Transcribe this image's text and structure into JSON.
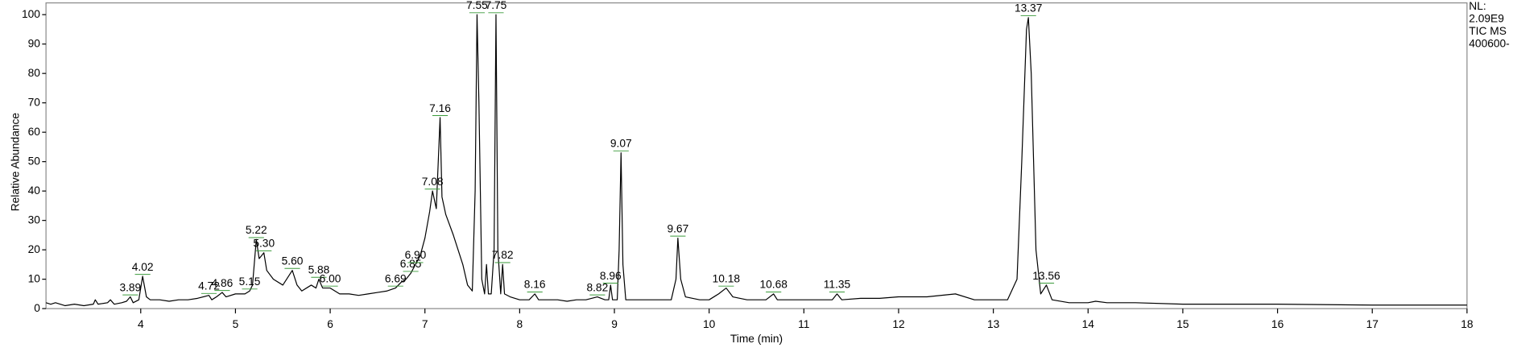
{
  "chart_data": {
    "type": "line",
    "x_label": "Time (min)",
    "y_label": "Relative Abundance",
    "annotations": [
      "NL:",
      "2.09E9",
      "TIC  MS",
      "400600-"
    ],
    "xlim": [
      3,
      18
    ],
    "xticks": [
      4,
      5,
      6,
      7,
      8,
      9,
      10,
      11,
      12,
      13,
      14,
      15,
      16,
      17,
      18
    ],
    "ylim": [
      0,
      104
    ],
    "yticks": [
      0,
      10,
      20,
      30,
      40,
      50,
      60,
      70,
      80,
      90,
      100
    ],
    "x": [
      3.0,
      3.05,
      3.1,
      3.2,
      3.3,
      3.4,
      3.5,
      3.52,
      3.55,
      3.65,
      3.68,
      3.72,
      3.8,
      3.85,
      3.89,
      3.92,
      3.98,
      4.02,
      4.06,
      4.1,
      4.2,
      4.3,
      4.4,
      4.5,
      4.6,
      4.72,
      4.75,
      4.8,
      4.86,
      4.9,
      5.0,
      5.1,
      5.15,
      5.18,
      5.22,
      5.25,
      5.3,
      5.33,
      5.4,
      5.5,
      5.6,
      5.65,
      5.7,
      5.8,
      5.85,
      5.88,
      5.92,
      6.0,
      6.1,
      6.2,
      6.3,
      6.4,
      6.5,
      6.6,
      6.69,
      6.75,
      6.8,
      6.85,
      6.9,
      6.95,
      7.0,
      7.05,
      7.08,
      7.12,
      7.16,
      7.18,
      7.22,
      7.3,
      7.4,
      7.45,
      7.5,
      7.53,
      7.55,
      7.57,
      7.6,
      7.63,
      7.65,
      7.67,
      7.7,
      7.73,
      7.75,
      7.77,
      7.8,
      7.82,
      7.84,
      7.9,
      8.0,
      8.1,
      8.16,
      8.2,
      8.3,
      8.4,
      8.5,
      8.6,
      8.7,
      8.82,
      8.9,
      8.94,
      8.96,
      8.98,
      9.03,
      9.05,
      9.07,
      9.09,
      9.12,
      9.2,
      9.3,
      9.4,
      9.5,
      9.6,
      9.65,
      9.67,
      9.7,
      9.75,
      9.9,
      10.0,
      10.1,
      10.18,
      10.25,
      10.4,
      10.6,
      10.68,
      10.72,
      10.9,
      11.1,
      11.3,
      11.35,
      11.4,
      11.6,
      11.8,
      12.0,
      12.3,
      12.6,
      12.8,
      13.0,
      13.15,
      13.25,
      13.3,
      13.35,
      13.37,
      13.4,
      13.45,
      13.5,
      13.56,
      13.62,
      13.8,
      14.0,
      14.08,
      14.2,
      14.3,
      14.5,
      15.0,
      16.0,
      17.0,
      18.0
    ],
    "series": [
      {
        "name": "TIC",
        "color": "#000000",
        "values": [
          2,
          1.5,
          2,
          1,
          1.5,
          1,
          1.5,
          3,
          1.5,
          2,
          3,
          1.5,
          2,
          2.5,
          4,
          2,
          3,
          11,
          4,
          3,
          3,
          2.5,
          3,
          3,
          3.5,
          4.5,
          3,
          4,
          5.5,
          4,
          5,
          5,
          6,
          8,
          23.5,
          17,
          19,
          13,
          10,
          8,
          13,
          8,
          6,
          8,
          7,
          10,
          7,
          7,
          5,
          5,
          4.5,
          5,
          5.5,
          6,
          7,
          9,
          10,
          12,
          15,
          18,
          24,
          33,
          40,
          34,
          65,
          38,
          32,
          25,
          15,
          8,
          6,
          40,
          100,
          70,
          10,
          5,
          15,
          5,
          5,
          20,
          100,
          20,
          5,
          15,
          5,
          4,
          3,
          3,
          5,
          3,
          3,
          3,
          2.5,
          3,
          3,
          4,
          3,
          3,
          8,
          3,
          3,
          20,
          53,
          15,
          3,
          3,
          3,
          3,
          3,
          3,
          10,
          24,
          10,
          4,
          3,
          3,
          5,
          7,
          4,
          3,
          3,
          5,
          3,
          3,
          3,
          3,
          5,
          3,
          3.5,
          3.5,
          4,
          4,
          5,
          3,
          3,
          3,
          10,
          50,
          95,
          99,
          80,
          20,
          5,
          8,
          3,
          2,
          2,
          2.5,
          2,
          2,
          2,
          1.5,
          1.5,
          1.2,
          1.2
        ]
      }
    ],
    "peaks": [
      {
        "label": "3.89",
        "x": 3.89,
        "y": 4
      },
      {
        "label": "4.02",
        "x": 4.02,
        "y": 11
      },
      {
        "label": "4.72",
        "x": 4.72,
        "y": 4.5
      },
      {
        "label": "4.86",
        "x": 4.86,
        "y": 5.5
      },
      {
        "label": "5.15",
        "x": 5.15,
        "y": 6
      },
      {
        "label": "5.22",
        "x": 5.22,
        "y": 23.5
      },
      {
        "label": "5.30",
        "x": 5.3,
        "y": 19
      },
      {
        "label": "5.60",
        "x": 5.6,
        "y": 13
      },
      {
        "label": "5.88",
        "x": 5.88,
        "y": 10
      },
      {
        "label": "6.00",
        "x": 6.0,
        "y": 7
      },
      {
        "label": "6.69",
        "x": 6.69,
        "y": 7
      },
      {
        "label": "6.85",
        "x": 6.85,
        "y": 12
      },
      {
        "label": "6.90",
        "x": 6.9,
        "y": 15
      },
      {
        "label": "7.08",
        "x": 7.08,
        "y": 40
      },
      {
        "label": "7.16",
        "x": 7.16,
        "y": 65
      },
      {
        "label": "7.55",
        "x": 7.55,
        "y": 100
      },
      {
        "label": "7.75",
        "x": 7.75,
        "y": 100
      },
      {
        "label": "7.82",
        "x": 7.82,
        "y": 15
      },
      {
        "label": "8.16",
        "x": 8.16,
        "y": 5
      },
      {
        "label": "8.82",
        "x": 8.82,
        "y": 4
      },
      {
        "label": "8.96",
        "x": 8.96,
        "y": 8
      },
      {
        "label": "9.07",
        "x": 9.07,
        "y": 53
      },
      {
        "label": "9.67",
        "x": 9.67,
        "y": 24
      },
      {
        "label": "10.18",
        "x": 10.18,
        "y": 7
      },
      {
        "label": "10.68",
        "x": 10.68,
        "y": 5
      },
      {
        "label": "11.35",
        "x": 11.35,
        "y": 5
      },
      {
        "label": "13.37",
        "x": 13.37,
        "y": 99
      },
      {
        "label": "13.56",
        "x": 13.56,
        "y": 8
      }
    ]
  }
}
